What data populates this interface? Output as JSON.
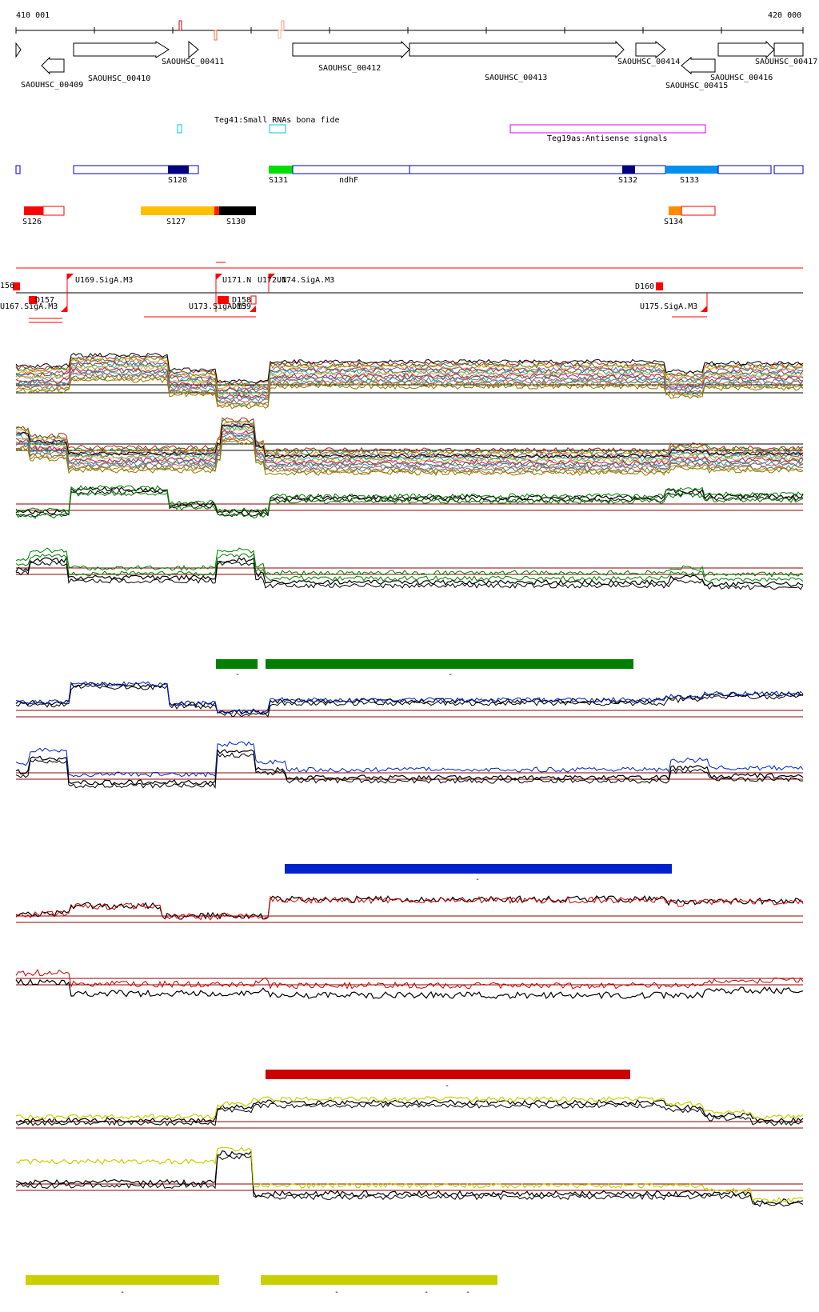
{
  "coordinates": {
    "start_label": "410 001",
    "end_label": "420 000"
  },
  "genes": [
    {
      "label": "SAOUHSC_00409"
    },
    {
      "label": "SAOUHSC_00410"
    },
    {
      "label": "SAOUHSC_00411"
    },
    {
      "label": "SAOUHSC_00412"
    },
    {
      "label": "SAOUHSC_00413"
    },
    {
      "label": "SAOUHSC_00414"
    },
    {
      "label": "SAOUHSC_00415"
    },
    {
      "label": "SAOUHSC_00416"
    },
    {
      "label": "SAOUHSC_00417"
    }
  ],
  "annotations": [
    {
      "label": "Teg41:Small RNAs bona fide",
      "color": "#00c8c8"
    },
    {
      "label": "Teg19as:Antisense signals",
      "color": "#e000e0"
    }
  ],
  "segments_row1": [
    {
      "label": "S128",
      "color": "#000080"
    },
    {
      "label": "S131",
      "color": "#00e000"
    },
    {
      "label": "ndhF",
      "color": "#0000c0"
    },
    {
      "label": "S132",
      "color": "#000080"
    },
    {
      "label": "S133",
      "color": "#0090f0"
    }
  ],
  "segments_row2": [
    {
      "label": "S126",
      "color": "#ff0000"
    },
    {
      "label": "S127",
      "color": "#ffc000"
    },
    {
      "label": "S130",
      "color": "#000000"
    },
    {
      "label": "S134",
      "color": "#ff8c00"
    }
  ],
  "promoters": [
    {
      "label": "156"
    },
    {
      "label": "U169.SigA.M3"
    },
    {
      "label": "U171.N"
    },
    {
      "label": "U172.N"
    },
    {
      "label": "U174.SigA.M3"
    },
    {
      "label": "D160"
    },
    {
      "label": "D157"
    },
    {
      "label": "U167.SigA.M3"
    },
    {
      "label": "D158"
    },
    {
      "label": "D159"
    },
    {
      "label": "U173.SigA.M3"
    },
    {
      "label": "U175.SigA.M3"
    }
  ],
  "condition_bars": [
    {
      "label": "-"
    },
    {
      "label": "-"
    },
    {
      "label": "-"
    },
    {
      "label": "-"
    },
    {
      "label": "-"
    },
    {
      "label": "-"
    },
    {
      "label": "-"
    },
    {
      "label": "-"
    }
  ],
  "colors": {
    "gene_outline": "#000000",
    "threshold_line": "#8b0000",
    "green": "#008000",
    "blue": "#0022cc",
    "red": "#cc0000",
    "yellow": "#c8d000"
  }
}
